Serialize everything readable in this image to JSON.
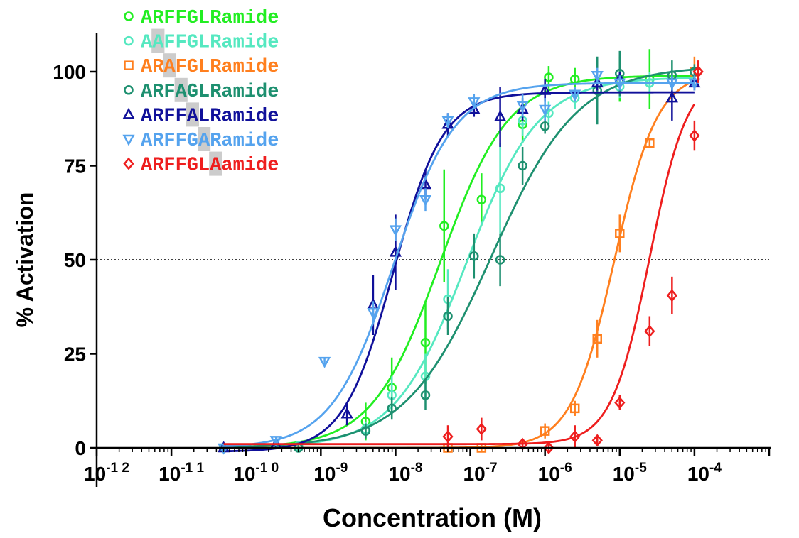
{
  "chart_data": {
    "type": "scatter",
    "xlabel": "Concentration (M)",
    "ylabel": "% Activation",
    "xscale": "log",
    "xlim": [
      -13,
      -4
    ],
    "ylim": [
      0,
      110
    ],
    "y_ticks": [
      "0",
      "25",
      "50",
      "75",
      "100"
    ],
    "x_tick_labels": [
      {
        "base": "10",
        "exp": "-1 2"
      },
      {
        "base": "10",
        "exp": "-1 1"
      },
      {
        "base": "10",
        "exp": "-1 0"
      },
      {
        "base": "10",
        "exp": "-9"
      },
      {
        "base": "10",
        "exp": "-8"
      },
      {
        "base": "10",
        "exp": "-7"
      },
      {
        "base": "10",
        "exp": "-6"
      },
      {
        "base": "10",
        "exp": "-5"
      },
      {
        "base": "10",
        "exp": "-4"
      }
    ],
    "reference_line": {
      "y": 50,
      "style": "dotted"
    },
    "grid": false,
    "legend_position": "top-left",
    "series": [
      {
        "name": "ARFFGLRamide",
        "color": "#22ee22",
        "marker": "circle",
        "highlight_index": -1,
        "logEC50": -8.4,
        "hill": 0.95,
        "bottom": 0,
        "top": 99,
        "points": [
          [
            -11.3,
            0,
            1
          ],
          [
            -10.3,
            0.5,
            1
          ],
          [
            -9.4,
            7,
            5
          ],
          [
            -9.05,
            16,
            8
          ],
          [
            -8.6,
            28,
            11
          ],
          [
            -8.35,
            59,
            15
          ],
          [
            -7.85,
            66,
            7
          ],
          [
            -7.3,
            86,
            5
          ],
          [
            -6.95,
            98.5,
            3
          ],
          [
            -6.6,
            98,
            3
          ],
          [
            -6,
            98,
            6
          ],
          [
            -5.6,
            98,
            8
          ]
        ]
      },
      {
        "name": "AAFFGLRamide",
        "color": "#55e8c0",
        "marker": "circle",
        "highlight_index": 1,
        "logEC50": -8.05,
        "hill": 0.9,
        "bottom": 0,
        "top": 98.5,
        "points": [
          [
            -11.3,
            0,
            1
          ],
          [
            -10.3,
            0.5,
            1
          ],
          [
            -9.4,
            5,
            2
          ],
          [
            -9.05,
            14,
            5
          ],
          [
            -8.6,
            19,
            6
          ],
          [
            -8.3,
            39.5,
            8
          ],
          [
            -7.6,
            69,
            12
          ],
          [
            -7.3,
            87,
            4
          ],
          [
            -6.95,
            89,
            3
          ],
          [
            -6.6,
            93,
            3
          ],
          [
            -6,
            96,
            3
          ],
          [
            -5.6,
            97,
            3
          ]
        ]
      },
      {
        "name": "ARAFGLRamide",
        "color": "#ff7f1e",
        "marker": "square",
        "highlight_index": 2,
        "logEC50": -6.07,
        "hill": 1.5,
        "bottom": 0,
        "top": 100,
        "points": [
          [
            -8.3,
            0,
            1
          ],
          [
            -7.85,
            0,
            1
          ],
          [
            -7,
            4.5,
            2
          ],
          [
            -6.6,
            10.5,
            2
          ],
          [
            -6.3,
            29,
            5
          ],
          [
            -6,
            57,
            5
          ],
          [
            -5.6,
            81,
            1
          ],
          [
            -5,
            100,
            4
          ]
        ]
      },
      {
        "name": "ARFAGLRamide",
        "color": "#1e9070",
        "marker": "circle",
        "highlight_index": 3,
        "logEC50": -7.72,
        "hill": 0.75,
        "bottom": 0,
        "top": 101.5,
        "points": [
          [
            -10.3,
            0,
            1
          ],
          [
            -9.4,
            4.5,
            2
          ],
          [
            -9.05,
            10.5,
            3
          ],
          [
            -8.6,
            14,
            4
          ],
          [
            -8.3,
            35,
            5
          ],
          [
            -7.95,
            51,
            6
          ],
          [
            -7.6,
            50,
            7
          ],
          [
            -7.3,
            75,
            5
          ],
          [
            -7,
            85.5,
            2
          ],
          [
            -6.3,
            95,
            9
          ],
          [
            -6,
            99.5,
            6
          ],
          [
            -5.3,
            99,
            4
          ],
          [
            -5,
            100,
            2
          ]
        ]
      },
      {
        "name": "ARFFALRamide",
        "color": "#10109a",
        "marker": "triangle-up",
        "highlight_index": 4,
        "logEC50": -9.03,
        "hill": 1.3,
        "bottom": -1,
        "top": 94.5,
        "points": [
          [
            -11.3,
            0,
            1
          ],
          [
            -10.6,
            1,
            1
          ],
          [
            -9.65,
            9,
            3
          ],
          [
            -9.3,
            38,
            8
          ],
          [
            -9.0,
            52,
            10
          ],
          [
            -8.6,
            70,
            4
          ],
          [
            -8.3,
            86,
            3
          ],
          [
            -7.95,
            90,
            2
          ],
          [
            -7.6,
            88,
            8
          ],
          [
            -7.3,
            90,
            3
          ],
          [
            -7,
            95,
            3
          ],
          [
            -6.3,
            97,
            2
          ],
          [
            -6,
            98,
            2
          ],
          [
            -5.3,
            93,
            6
          ],
          [
            -5,
            97,
            2
          ]
        ]
      },
      {
        "name": "ARFFGARamide",
        "color": "#55a3ee",
        "marker": "triangle-down",
        "highlight_index": 5,
        "logEC50": -9.03,
        "hill": 1.05,
        "bottom": 0,
        "top": 97,
        "points": [
          [
            -11.3,
            0,
            1
          ],
          [
            -10.6,
            2,
            1
          ],
          [
            -9.95,
            23,
            1
          ],
          [
            -9.3,
            36,
            3
          ],
          [
            -9.0,
            58,
            3
          ],
          [
            -8.6,
            66,
            3
          ],
          [
            -8.3,
            87,
            2
          ],
          [
            -7.95,
            92,
            2
          ],
          [
            -7.3,
            91,
            3
          ],
          [
            -7,
            90,
            3
          ],
          [
            -6.6,
            94,
            2
          ],
          [
            -6.3,
            99,
            2
          ],
          [
            -6,
            97,
            2
          ],
          [
            -5.3,
            97,
            2
          ],
          [
            -5,
            97,
            2
          ]
        ]
      },
      {
        "name": "ARFFGLAamide",
        "color": "#ee1e1e",
        "marker": "diamond",
        "highlight_index": 6,
        "logEC50": -5.6,
        "hill": 1.7,
        "bottom": 1,
        "top": 100,
        "points": [
          [
            -8.3,
            3,
            3
          ],
          [
            -7.85,
            5,
            3
          ],
          [
            -7.3,
            1,
            1
          ],
          [
            -6.95,
            0,
            1
          ],
          [
            -6.6,
            3,
            3
          ],
          [
            -6.3,
            2,
            1
          ],
          [
            -6.0,
            12,
            2
          ],
          [
            -5.6,
            31,
            4
          ],
          [
            -5.3,
            40.5,
            5
          ],
          [
            -5.0,
            83,
            4
          ],
          [
            -4.95,
            100,
            3
          ]
        ]
      }
    ]
  }
}
